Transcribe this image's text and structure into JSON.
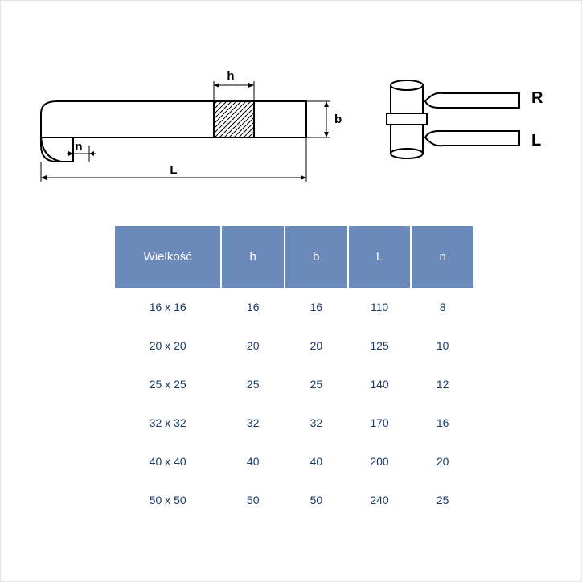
{
  "diagram": {
    "labels": {
      "h": "h",
      "b": "b",
      "n": "n",
      "L": "L",
      "R": "R",
      "Lside": "L"
    },
    "colors": {
      "stroke": "#000000",
      "fill_hatch": "#000000",
      "background": "#ffffff"
    },
    "stroke_width": 2
  },
  "table": {
    "header_bg": "#6a8abc",
    "header_fg": "#ffffff",
    "cell_fg": "#1a3a6a",
    "columns": [
      "Wielkość",
      "h",
      "b",
      "L",
      "n"
    ],
    "rows": [
      [
        "16 x 16",
        "16",
        "16",
        "110",
        "8"
      ],
      [
        "20 x 20",
        "20",
        "20",
        "125",
        "10"
      ],
      [
        "25 x 25",
        "25",
        "25",
        "140",
        "12"
      ],
      [
        "32 x 32",
        "32",
        "32",
        "170",
        "16"
      ],
      [
        "40 x 40",
        "40",
        "40",
        "200",
        "20"
      ],
      [
        "50 x 50",
        "50",
        "50",
        "240",
        "25"
      ]
    ]
  }
}
